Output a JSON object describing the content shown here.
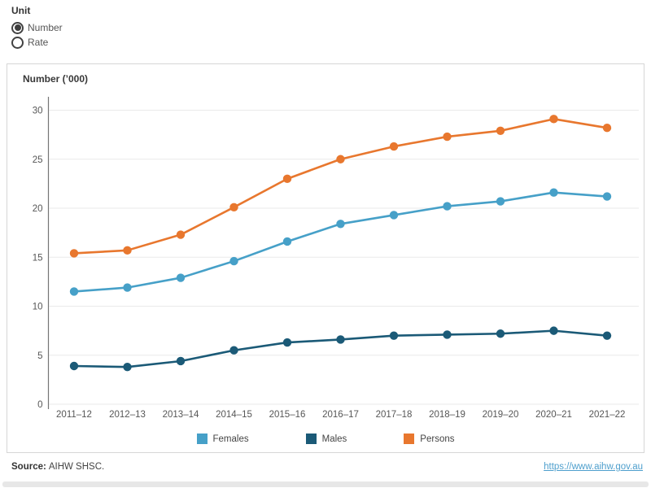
{
  "unit_control": {
    "label": "Unit",
    "options": [
      {
        "label": "Number",
        "selected": true
      },
      {
        "label": "Rate",
        "selected": false
      }
    ]
  },
  "chart": {
    "title": "Number (’000)"
  },
  "chart_data": {
    "type": "line",
    "title": "Number (’000)",
    "categories": [
      "2011–12",
      "2012–13",
      "2013–14",
      "2014–15",
      "2015–16",
      "2016–17",
      "2017–18",
      "2018–19",
      "2019–20",
      "2020–21",
      "2021–22"
    ],
    "series": [
      {
        "name": "Females",
        "color": "#46a0c8",
        "values": [
          11.5,
          11.9,
          12.9,
          14.6,
          16.6,
          18.4,
          19.3,
          20.2,
          20.7,
          21.6,
          21.2
        ]
      },
      {
        "name": "Males",
        "color": "#1b5a77",
        "values": [
          3.9,
          3.8,
          4.4,
          5.5,
          6.3,
          6.6,
          7.0,
          7.1,
          7.2,
          7.5,
          7.0
        ]
      },
      {
        "name": "Persons",
        "color": "#e8772e",
        "values": [
          15.4,
          15.7,
          17.3,
          20.1,
          23.0,
          25.0,
          26.3,
          27.3,
          27.9,
          29.1,
          28.2
        ]
      }
    ],
    "xlabel": "",
    "ylabel": "Number (’000)",
    "ylim": [
      0,
      30
    ],
    "ytick_step": 5,
    "grid": "horizontal",
    "legend_position": "bottom",
    "marker": "circle"
  },
  "footer": {
    "source_label": "Source:",
    "source_text": "AIHW SHSC.",
    "link": "https://www.aihw.gov.au",
    "link_color": "#4e9fcd"
  }
}
